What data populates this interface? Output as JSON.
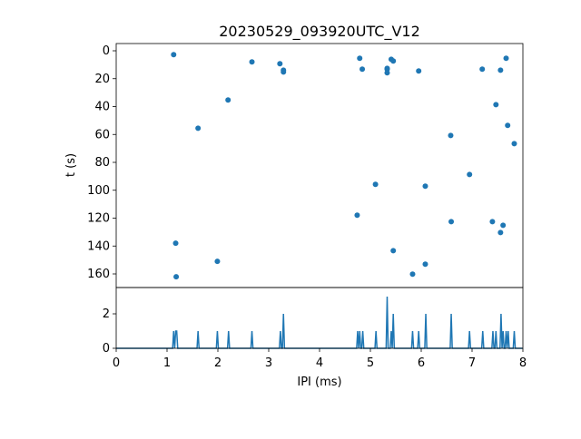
{
  "chart_data": [
    {
      "type": "scatter",
      "title": "20230529_093920UTC_V12",
      "xlabel": "",
      "ylabel": "t (s)",
      "xlim": [
        0,
        8
      ],
      "ylim": [
        170,
        -5
      ],
      "yticks": [
        0,
        20,
        40,
        60,
        80,
        100,
        120,
        140,
        160
      ],
      "color": "#1f77b4",
      "points": [
        {
          "x": 1.13,
          "y": 2.8
        },
        {
          "x": 2.67,
          "y": 8.0
        },
        {
          "x": 3.22,
          "y": 9.3
        },
        {
          "x": 3.29,
          "y": 13.9
        },
        {
          "x": 3.29,
          "y": 15.2
        },
        {
          "x": 2.2,
          "y": 35.3
        },
        {
          "x": 1.61,
          "y": 55.5
        },
        {
          "x": 1.17,
          "y": 138
        },
        {
          "x": 1.99,
          "y": 151
        },
        {
          "x": 1.18,
          "y": 162
        },
        {
          "x": 4.79,
          "y": 5.4
        },
        {
          "x": 5.41,
          "y": 6.1
        },
        {
          "x": 5.45,
          "y": 7.3
        },
        {
          "x": 4.84,
          "y": 13.2
        },
        {
          "x": 5.33,
          "y": 12.6
        },
        {
          "x": 5.33,
          "y": 13.2
        },
        {
          "x": 5.33,
          "y": 15.8
        },
        {
          "x": 5.95,
          "y": 14.5
        },
        {
          "x": 7.2,
          "y": 13.2
        },
        {
          "x": 7.56,
          "y": 13.9
        },
        {
          "x": 7.67,
          "y": 5.4
        },
        {
          "x": 7.47,
          "y": 38.6
        },
        {
          "x": 7.7,
          "y": 53.5
        },
        {
          "x": 6.58,
          "y": 60.7
        },
        {
          "x": 7.83,
          "y": 66.6
        },
        {
          "x": 6.95,
          "y": 88.7
        },
        {
          "x": 5.1,
          "y": 95.8
        },
        {
          "x": 6.08,
          "y": 97.1
        },
        {
          "x": 4.74,
          "y": 117.9
        },
        {
          "x": 6.59,
          "y": 122.5
        },
        {
          "x": 7.4,
          "y": 122.5
        },
        {
          "x": 7.61,
          "y": 125.1
        },
        {
          "x": 7.56,
          "y": 130.3
        },
        {
          "x": 5.45,
          "y": 143.3
        },
        {
          "x": 6.08,
          "y": 153
        },
        {
          "x": 5.83,
          "y": 160.2
        }
      ]
    },
    {
      "type": "line",
      "description_kind": "histogram of IPI values (step line)",
      "xlabel": "IPI (ms)",
      "ylabel": "",
      "xlim": [
        0,
        8
      ],
      "ylim": [
        0,
        3.5
      ],
      "bin_width": 0.02,
      "xticks": [
        0,
        1,
        2,
        3,
        4,
        5,
        6,
        7,
        8
      ],
      "yticks": [
        0,
        2
      ],
      "color": "#1f77b4"
    }
  ]
}
